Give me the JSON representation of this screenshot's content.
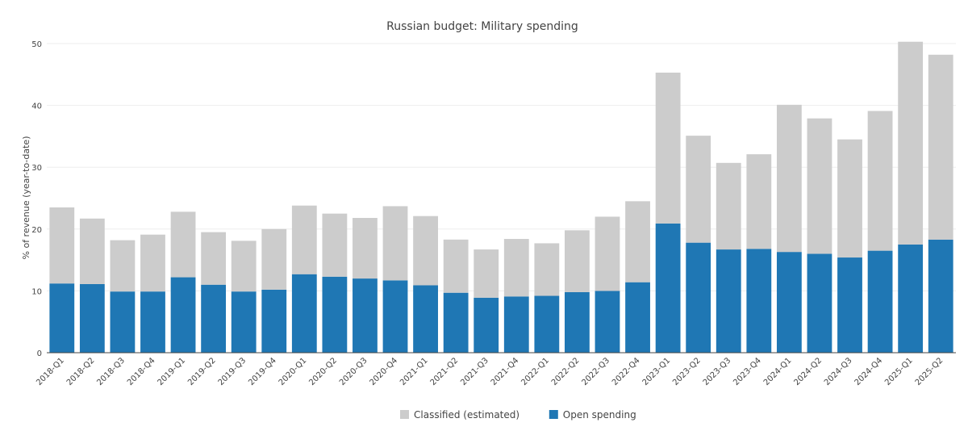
{
  "chart_data": {
    "type": "bar",
    "stacked": true,
    "title": "Russian budget: Military spending",
    "xlabel": "",
    "ylabel": "% of revenue (year-to-date)",
    "ylim": [
      0,
      50
    ],
    "yticks": [
      0,
      10,
      20,
      30,
      40,
      50
    ],
    "grid": true,
    "legend_position": "bottom-center",
    "categories": [
      "2018-Q1",
      "2018-Q2",
      "2018-Q3",
      "2018-Q4",
      "2019-Q1",
      "2019-Q2",
      "2019-Q3",
      "2019-Q4",
      "2020-Q1",
      "2020-Q2",
      "2020-Q3",
      "2020-Q4",
      "2021-Q1",
      "2021-Q2",
      "2021-Q3",
      "2021-Q4",
      "2022-Q1",
      "2022-Q2",
      "2022-Q3",
      "2022-Q4",
      "2023-Q1",
      "2023-Q2",
      "2023-Q3",
      "2023-Q4",
      "2024-Q1",
      "2024-Q2",
      "2024-Q3",
      "2024-Q4",
      "2025-Q1",
      "2025-Q2"
    ],
    "series": [
      {
        "name": "Open spending",
        "color": "#1f77b4",
        "values": [
          11.2,
          11.1,
          9.9,
          9.9,
          12.2,
          11.0,
          9.9,
          10.2,
          12.7,
          12.3,
          12.0,
          11.7,
          10.9,
          9.7,
          8.9,
          9.1,
          9.2,
          9.8,
          10.0,
          11.4,
          20.9,
          17.8,
          16.7,
          16.8,
          16.3,
          16.0,
          15.4,
          16.5,
          17.5,
          18.3
        ]
      },
      {
        "name": "Classified (estimated)",
        "color": "#cccccc",
        "values": [
          12.3,
          10.6,
          8.3,
          9.2,
          10.6,
          8.5,
          8.2,
          9.8,
          11.1,
          10.2,
          9.8,
          12.0,
          11.2,
          8.6,
          7.8,
          9.3,
          8.5,
          10.0,
          12.0,
          13.1,
          24.4,
          17.3,
          14.0,
          15.3,
          23.8,
          21.9,
          19.1,
          22.6,
          32.8,
          29.9
        ]
      }
    ],
    "legend": [
      {
        "name": "Classified (estimated)",
        "color": "#cccccc"
      },
      {
        "name": "Open spending",
        "color": "#1f77b4"
      }
    ]
  }
}
